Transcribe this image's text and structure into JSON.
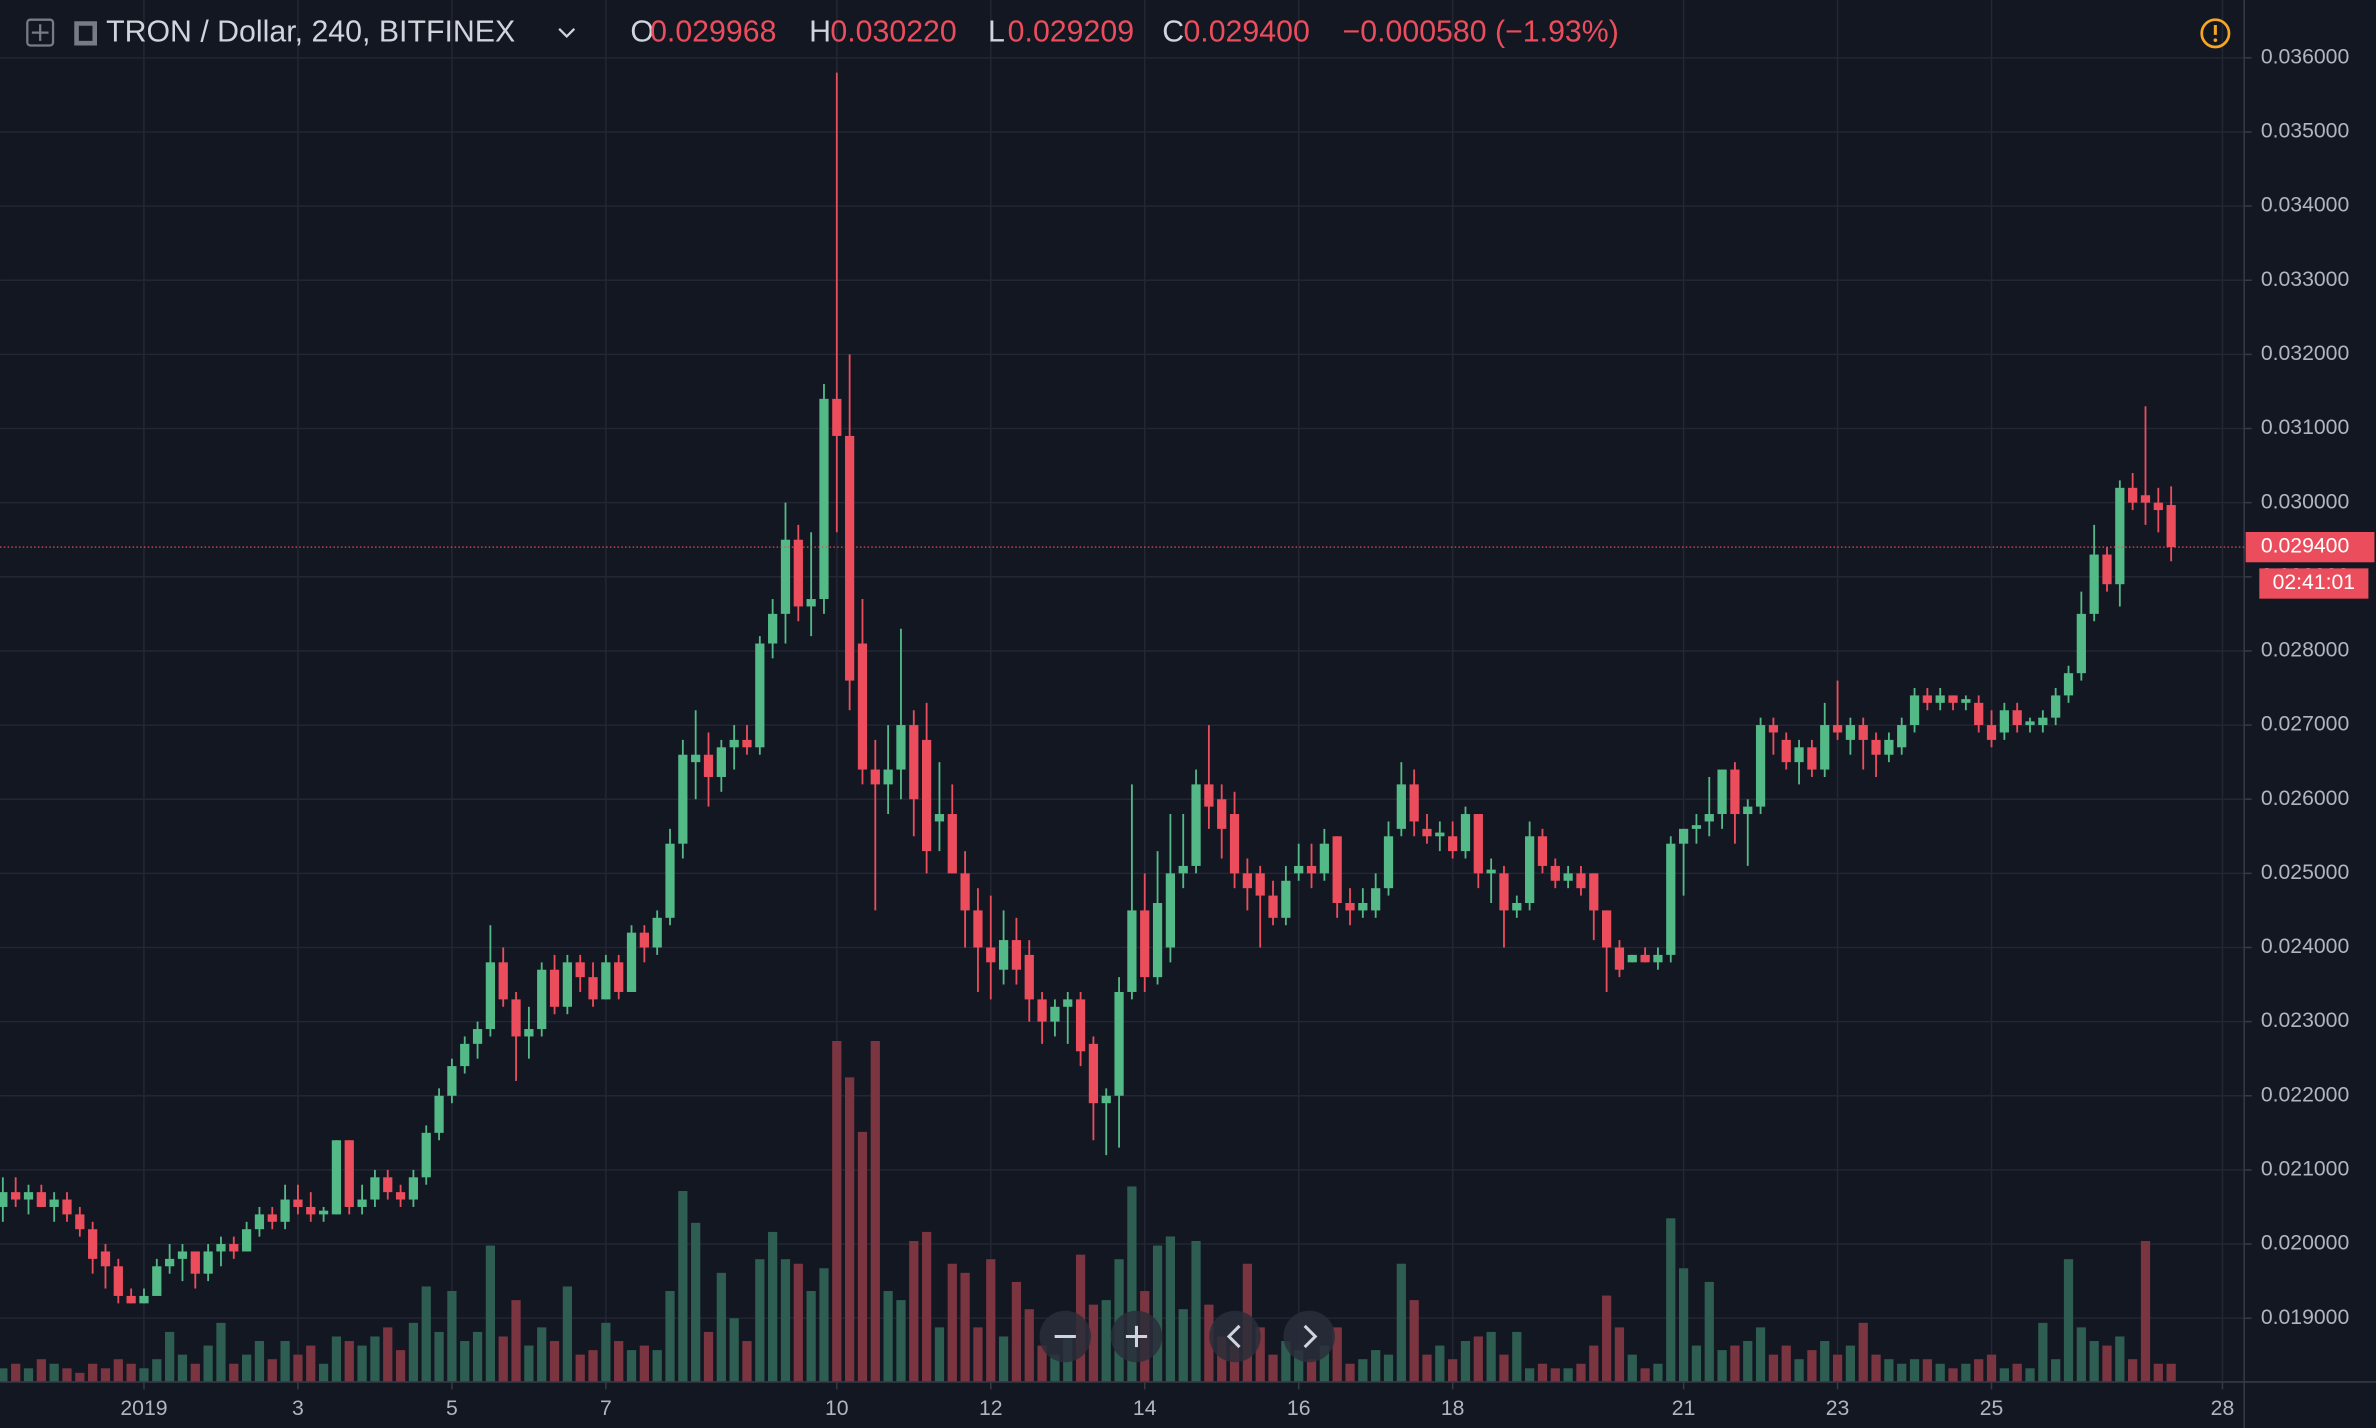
{
  "chart_data": {
    "type": "candlestick",
    "header": {
      "symbol": "TRON / Dollar, 240, BITFINEX",
      "o_label": "O",
      "open": "0.029968",
      "h_label": "H",
      "high": "0.030220",
      "l_label": "L",
      "low": "0.029209",
      "c_label": "C",
      "close": "0.029400",
      "change": "−0.000580 (−1.93%)"
    },
    "last_price": {
      "value": 0.0294,
      "label": "0.029400"
    },
    "countdown": "02:41:01",
    "up_color": "#53b987",
    "down_color": "#eb4d5c",
    "up_volume_color": "#2e5e52",
    "down_volume_color": "#7a3540",
    "grid": true,
    "xlim": [
      -0.22,
      174.69
    ],
    "ylim": [
      0.01814,
      0.03678
    ],
    "vlim": [
      0,
      100
    ],
    "xticks": [
      {
        "value": 11,
        "label": "2019"
      },
      {
        "value": 23,
        "label": "3"
      },
      {
        "value": 35,
        "label": "5"
      },
      {
        "value": 47,
        "label": "7"
      },
      {
        "value": 65,
        "label": "10"
      },
      {
        "value": 77,
        "label": "12"
      },
      {
        "value": 89,
        "label": "14"
      },
      {
        "value": 101,
        "label": "16"
      },
      {
        "value": 113,
        "label": "18"
      },
      {
        "value": 131,
        "label": "21"
      },
      {
        "value": 143,
        "label": "23"
      },
      {
        "value": 155,
        "label": "25"
      },
      {
        "value": 173,
        "label": "28"
      }
    ],
    "yticks": [
      {
        "value": 0.019,
        "label": "0.019000"
      },
      {
        "value": 0.02,
        "label": "0.020000"
      },
      {
        "value": 0.021,
        "label": "0.021000"
      },
      {
        "value": 0.022,
        "label": "0.022000"
      },
      {
        "value": 0.023,
        "label": "0.023000"
      },
      {
        "value": 0.024,
        "label": "0.024000"
      },
      {
        "value": 0.025,
        "label": "0.025000"
      },
      {
        "value": 0.026,
        "label": "0.026000"
      },
      {
        "value": 0.027,
        "label": "0.027000"
      },
      {
        "value": 0.028,
        "label": "0.028000"
      },
      {
        "value": 0.029,
        "label": "0.029000"
      },
      {
        "value": 0.03,
        "label": "0.030000"
      },
      {
        "value": 0.031,
        "label": "0.031000"
      },
      {
        "value": 0.032,
        "label": "0.032000"
      },
      {
        "value": 0.033,
        "label": "0.033000"
      },
      {
        "value": 0.034,
        "label": "0.034000"
      },
      {
        "value": 0.035,
        "label": "0.035000"
      },
      {
        "value": 0.036,
        "label": "0.036000"
      }
    ],
    "candles": [
      [
        0.0205,
        0.0209,
        0.0203,
        0.0207,
        3
      ],
      [
        0.0207,
        0.0209,
        0.0205,
        0.0206,
        4
      ],
      [
        0.0206,
        0.0208,
        0.0204,
        0.0207,
        3
      ],
      [
        0.0207,
        0.0208,
        0.0205,
        0.0205,
        5
      ],
      [
        0.0205,
        0.0207,
        0.0203,
        0.0206,
        4
      ],
      [
        0.0206,
        0.0207,
        0.0203,
        0.0204,
        3
      ],
      [
        0.0204,
        0.0205,
        0.0201,
        0.0202,
        2
      ],
      [
        0.0202,
        0.0203,
        0.0196,
        0.0198,
        4
      ],
      [
        0.0199,
        0.02,
        0.0194,
        0.0197,
        3
      ],
      [
        0.0197,
        0.0198,
        0.0192,
        0.0193,
        5
      ],
      [
        0.0193,
        0.0194,
        0.0192,
        0.0192,
        4
      ],
      [
        0.0192,
        0.0194,
        0.0192,
        0.0193,
        3
      ],
      [
        0.0193,
        0.0198,
        0.0193,
        0.0197,
        5
      ],
      [
        0.0197,
        0.02,
        0.0196,
        0.0198,
        11
      ],
      [
        0.0198,
        0.02,
        0.0195,
        0.0199,
        6
      ],
      [
        0.0199,
        0.0199,
        0.0194,
        0.0196,
        4
      ],
      [
        0.0196,
        0.02,
        0.0195,
        0.0199,
        8
      ],
      [
        0.0199,
        0.0201,
        0.0197,
        0.02,
        13
      ],
      [
        0.02,
        0.0201,
        0.0198,
        0.0199,
        4
      ],
      [
        0.0199,
        0.0203,
        0.0199,
        0.0202,
        6
      ],
      [
        0.0202,
        0.0205,
        0.0201,
        0.0204,
        9
      ],
      [
        0.0204,
        0.0205,
        0.0202,
        0.0203,
        5
      ],
      [
        0.0203,
        0.0208,
        0.0202,
        0.0206,
        9
      ],
      [
        0.0206,
        0.0208,
        0.0204,
        0.0205,
        6
      ],
      [
        0.0205,
        0.0207,
        0.0203,
        0.0204,
        8
      ],
      [
        0.0204,
        0.0205,
        0.0203,
        0.02045,
        4
      ],
      [
        0.0204,
        0.0214,
        0.0204,
        0.0214,
        10
      ],
      [
        0.0214,
        0.0214,
        0.0204,
        0.0205,
        9
      ],
      [
        0.0205,
        0.0208,
        0.0204,
        0.0206,
        8
      ],
      [
        0.0206,
        0.021,
        0.0205,
        0.0209,
        10
      ],
      [
        0.0209,
        0.021,
        0.0206,
        0.0207,
        12
      ],
      [
        0.0207,
        0.0208,
        0.0205,
        0.0206,
        7
      ],
      [
        0.0206,
        0.021,
        0.0205,
        0.0209,
        13
      ],
      [
        0.0209,
        0.0216,
        0.0208,
        0.0215,
        21
      ],
      [
        0.0215,
        0.0221,
        0.0214,
        0.022,
        11
      ],
      [
        0.022,
        0.0225,
        0.0219,
        0.0224,
        20
      ],
      [
        0.0224,
        0.0228,
        0.0223,
        0.0227,
        9
      ],
      [
        0.0227,
        0.023,
        0.0225,
        0.0229,
        11
      ],
      [
        0.0229,
        0.0243,
        0.0228,
        0.0238,
        30
      ],
      [
        0.0238,
        0.024,
        0.0232,
        0.0233,
        10
      ],
      [
        0.0233,
        0.0234,
        0.0222,
        0.0228,
        18
      ],
      [
        0.0228,
        0.0232,
        0.0225,
        0.0229,
        8
      ],
      [
        0.0229,
        0.0238,
        0.0228,
        0.0237,
        12
      ],
      [
        0.0237,
        0.0239,
        0.0231,
        0.0232,
        9
      ],
      [
        0.0232,
        0.0239,
        0.0231,
        0.0238,
        21
      ],
      [
        0.0238,
        0.0239,
        0.0234,
        0.0236,
        6
      ],
      [
        0.0236,
        0.0238,
        0.0232,
        0.0233,
        7
      ],
      [
        0.0233,
        0.0239,
        0.0233,
        0.0238,
        13
      ],
      [
        0.0238,
        0.0239,
        0.0233,
        0.0234,
        9
      ],
      [
        0.0234,
        0.0243,
        0.0234,
        0.0242,
        7
      ],
      [
        0.0242,
        0.0243,
        0.0238,
        0.024,
        8
      ],
      [
        0.024,
        0.0245,
        0.0239,
        0.0244,
        7
      ],
      [
        0.0244,
        0.0256,
        0.0243,
        0.0254,
        20
      ],
      [
        0.0254,
        0.0268,
        0.0252,
        0.0266,
        42
      ],
      [
        0.0265,
        0.0272,
        0.026,
        0.0266,
        35
      ],
      [
        0.0266,
        0.0269,
        0.0259,
        0.0263,
        11
      ],
      [
        0.0263,
        0.0268,
        0.0261,
        0.0267,
        24
      ],
      [
        0.0267,
        0.027,
        0.0264,
        0.0268,
        14
      ],
      [
        0.0268,
        0.027,
        0.0266,
        0.0267,
        9
      ],
      [
        0.0267,
        0.0282,
        0.0266,
        0.0281,
        27
      ],
      [
        0.0281,
        0.0287,
        0.0279,
        0.0285,
        33
      ],
      [
        0.0285,
        0.03,
        0.0281,
        0.0295,
        27
      ],
      [
        0.0295,
        0.0297,
        0.0284,
        0.0286,
        26
      ],
      [
        0.0286,
        0.0296,
        0.0282,
        0.0287,
        20
      ],
      [
        0.0287,
        0.0316,
        0.0285,
        0.0314,
        25
      ],
      [
        0.0314,
        0.0358,
        0.0296,
        0.0309,
        75
      ],
      [
        0.0309,
        0.032,
        0.0272,
        0.0276,
        67
      ],
      [
        0.0281,
        0.0287,
        0.0262,
        0.0264,
        55
      ],
      [
        0.0264,
        0.0268,
        0.0245,
        0.0262,
        75
      ],
      [
        0.0262,
        0.027,
        0.0258,
        0.0264,
        20
      ],
      [
        0.0264,
        0.0283,
        0.026,
        0.027,
        18
      ],
      [
        0.027,
        0.0272,
        0.0255,
        0.026,
        31
      ],
      [
        0.0268,
        0.0273,
        0.025,
        0.0253,
        33
      ],
      [
        0.0257,
        0.0265,
        0.0253,
        0.0258,
        12
      ],
      [
        0.0258,
        0.0262,
        0.025,
        0.025,
        26
      ],
      [
        0.025,
        0.0253,
        0.024,
        0.0245,
        24
      ],
      [
        0.0245,
        0.0248,
        0.0234,
        0.024,
        12
      ],
      [
        0.024,
        0.0247,
        0.0233,
        0.0238,
        27
      ],
      [
        0.0237,
        0.0245,
        0.0235,
        0.0241,
        10
      ],
      [
        0.0241,
        0.0244,
        0.0235,
        0.0237,
        22
      ],
      [
        0.0239,
        0.0241,
        0.023,
        0.0233,
        16
      ],
      [
        0.0233,
        0.0234,
        0.0227,
        0.023,
        8
      ],
      [
        0.023,
        0.0233,
        0.0228,
        0.0232,
        6
      ],
      [
        0.0232,
        0.0234,
        0.0227,
        0.0233,
        10
      ],
      [
        0.0233,
        0.0234,
        0.0224,
        0.0226,
        28
      ],
      [
        0.0227,
        0.0228,
        0.0214,
        0.0219,
        17
      ],
      [
        0.0219,
        0.0221,
        0.0212,
        0.022,
        18
      ],
      [
        0.022,
        0.0236,
        0.0213,
        0.0234,
        27
      ],
      [
        0.0234,
        0.0262,
        0.0233,
        0.0245,
        43
      ],
      [
        0.0245,
        0.025,
        0.0234,
        0.0236,
        20
      ],
      [
        0.0236,
        0.0253,
        0.0235,
        0.0246,
        30
      ],
      [
        0.024,
        0.0258,
        0.0238,
        0.025,
        32
      ],
      [
        0.025,
        0.0258,
        0.0248,
        0.0251,
        16
      ],
      [
        0.0251,
        0.0264,
        0.025,
        0.0262,
        31
      ],
      [
        0.0262,
        0.027,
        0.0256,
        0.0259,
        17
      ],
      [
        0.026,
        0.0262,
        0.0252,
        0.0256,
        10
      ],
      [
        0.0258,
        0.0261,
        0.0248,
        0.025,
        8
      ],
      [
        0.025,
        0.0252,
        0.0245,
        0.0248,
        26
      ],
      [
        0.025,
        0.0251,
        0.024,
        0.0247,
        12
      ],
      [
        0.0247,
        0.0249,
        0.0243,
        0.0244,
        6
      ],
      [
        0.0244,
        0.0251,
        0.0243,
        0.0249,
        9
      ],
      [
        0.025,
        0.0254,
        0.0249,
        0.0251,
        7
      ],
      [
        0.0251,
        0.0254,
        0.0248,
        0.025,
        5
      ],
      [
        0.025,
        0.0256,
        0.0249,
        0.0254,
        8
      ],
      [
        0.0255,
        0.0255,
        0.0244,
        0.0246,
        12
      ],
      [
        0.0246,
        0.0248,
        0.0243,
        0.0245,
        4
      ],
      [
        0.0245,
        0.0248,
        0.0244,
        0.0246,
        5
      ],
      [
        0.0245,
        0.025,
        0.0244,
        0.0248,
        7
      ],
      [
        0.0248,
        0.0257,
        0.0247,
        0.0255,
        6
      ],
      [
        0.0256,
        0.0265,
        0.0255,
        0.0262,
        26
      ],
      [
        0.0262,
        0.0264,
        0.0255,
        0.0257,
        18
      ],
      [
        0.0256,
        0.0258,
        0.0254,
        0.0255,
        6
      ],
      [
        0.0255,
        0.0257,
        0.0253,
        0.02555,
        8
      ],
      [
        0.0255,
        0.0257,
        0.0252,
        0.0253,
        5
      ],
      [
        0.0253,
        0.0259,
        0.0252,
        0.0258,
        9
      ],
      [
        0.0258,
        0.0258,
        0.0248,
        0.025,
        10
      ],
      [
        0.025,
        0.0252,
        0.0246,
        0.02505,
        11
      ],
      [
        0.025,
        0.0251,
        0.024,
        0.0245,
        6
      ],
      [
        0.0245,
        0.0247,
        0.0244,
        0.0246,
        11
      ],
      [
        0.0246,
        0.0257,
        0.0245,
        0.0255,
        3
      ],
      [
        0.0255,
        0.0256,
        0.025,
        0.0251,
        4
      ],
      [
        0.0251,
        0.0252,
        0.0248,
        0.0249,
        3
      ],
      [
        0.0249,
        0.0251,
        0.0248,
        0.025,
        3
      ],
      [
        0.025,
        0.0251,
        0.0247,
        0.0248,
        4
      ],
      [
        0.025,
        0.025,
        0.0241,
        0.0245,
        8
      ],
      [
        0.0245,
        0.0245,
        0.0234,
        0.024,
        19
      ],
      [
        0.024,
        0.0241,
        0.0236,
        0.0237,
        12
      ],
      [
        0.0238,
        0.0239,
        0.0238,
        0.0239,
        6
      ],
      [
        0.0239,
        0.024,
        0.0238,
        0.0238,
        3
      ],
      [
        0.0238,
        0.024,
        0.0237,
        0.0239,
        4
      ],
      [
        0.0239,
        0.0255,
        0.0238,
        0.0254,
        36
      ],
      [
        0.0254,
        0.0256,
        0.0247,
        0.0256,
        25
      ],
      [
        0.0256,
        0.0258,
        0.0254,
        0.02565,
        8
      ],
      [
        0.0257,
        0.0263,
        0.0255,
        0.0258,
        22
      ],
      [
        0.0258,
        0.0264,
        0.0256,
        0.0264,
        7
      ],
      [
        0.0264,
        0.0265,
        0.0254,
        0.0258,
        8
      ],
      [
        0.0258,
        0.026,
        0.0251,
        0.0259,
        9
      ],
      [
        0.0259,
        0.0271,
        0.0258,
        0.027,
        12
      ],
      [
        0.027,
        0.0271,
        0.0266,
        0.0269,
        6
      ],
      [
        0.0268,
        0.0269,
        0.0264,
        0.0265,
        8
      ],
      [
        0.0265,
        0.0268,
        0.0262,
        0.0267,
        5
      ],
      [
        0.0267,
        0.0268,
        0.0263,
        0.0264,
        7
      ],
      [
        0.0264,
        0.0273,
        0.0263,
        0.027,
        9
      ],
      [
        0.027,
        0.0276,
        0.0268,
        0.0269,
        6
      ],
      [
        0.0268,
        0.0271,
        0.0266,
        0.027,
        8
      ],
      [
        0.027,
        0.0271,
        0.0264,
        0.0268,
        13
      ],
      [
        0.0268,
        0.0269,
        0.0263,
        0.0266,
        6
      ],
      [
        0.0266,
        0.0269,
        0.0265,
        0.0268,
        5
      ],
      [
        0.0267,
        0.0271,
        0.0266,
        0.027,
        4
      ],
      [
        0.027,
        0.0275,
        0.0269,
        0.0274,
        5
      ],
      [
        0.0274,
        0.0275,
        0.0272,
        0.0273,
        5
      ],
      [
        0.0273,
        0.0275,
        0.0272,
        0.0274,
        4
      ],
      [
        0.0274,
        0.0274,
        0.0272,
        0.0273,
        3
      ],
      [
        0.0273,
        0.0274,
        0.0272,
        0.02735,
        4
      ],
      [
        0.0273,
        0.0274,
        0.0269,
        0.027,
        5
      ],
      [
        0.027,
        0.0272,
        0.0267,
        0.0268,
        6
      ],
      [
        0.0269,
        0.0273,
        0.0268,
        0.0272,
        3
      ],
      [
        0.0272,
        0.0273,
        0.0269,
        0.027,
        4
      ],
      [
        0.027,
        0.0271,
        0.0269,
        0.02705,
        3
      ],
      [
        0.027,
        0.0272,
        0.0269,
        0.0271,
        13
      ],
      [
        0.0271,
        0.0275,
        0.027,
        0.0274,
        5
      ],
      [
        0.0274,
        0.0278,
        0.0273,
        0.0277,
        27
      ],
      [
        0.0277,
        0.0288,
        0.0276,
        0.0285,
        12
      ],
      [
        0.0285,
        0.0297,
        0.0284,
        0.0293,
        9
      ],
      [
        0.0293,
        0.0294,
        0.0288,
        0.0289,
        8
      ],
      [
        0.0289,
        0.0303,
        0.0286,
        0.0302,
        10
      ],
      [
        0.0302,
        0.0304,
        0.0299,
        0.03,
        5
      ],
      [
        0.0301,
        0.0313,
        0.0297,
        0.03,
        31
      ],
      [
        0.03,
        0.0302,
        0.0296,
        0.0299,
        4
      ],
      [
        0.029968,
        0.03022,
        0.029209,
        0.0294,
        4
      ]
    ]
  }
}
